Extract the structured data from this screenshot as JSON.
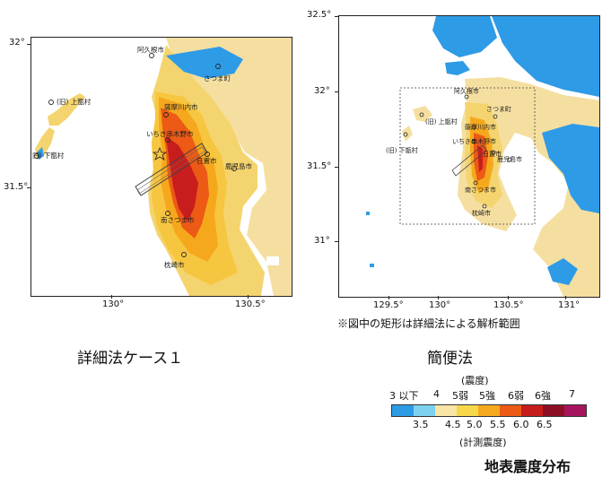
{
  "maps": [
    {
      "caption": "詳細法ケース１",
      "lat_ticks": [
        "32°",
        "31.5°"
      ],
      "lon_ticks": [
        "130°",
        "130.5°"
      ],
      "places": [
        "阿久根市",
        "さつま町",
        "(旧) 上甑村",
        "薩摩川内市",
        "いちき串木野市",
        "(旧) 下甑村",
        "日置市",
        "鹿児島市",
        "南さつま市",
        "枕崎市"
      ]
    },
    {
      "caption": "簡便法",
      "lat_ticks": [
        "32.5°",
        "32°",
        "31.5°",
        "31°"
      ],
      "lon_ticks": [
        "129.5°",
        "130°",
        "130.5°",
        "131°"
      ],
      "places": [
        "阿久根市",
        "さつま町",
        "(旧) 上甑村",
        "薩摩川内市",
        "いちき串木野市",
        "(旧) 下甑村",
        "日置市",
        "鹿児島市",
        "南さつま市",
        "枕崎市"
      ],
      "note": "※図中の矩形は詳細法による解析範囲"
    }
  ],
  "legend": {
    "title_top": "(震度)",
    "intensity_labels": [
      "3 以下",
      "4",
      "5弱",
      "5強",
      "6弱",
      "6強",
      "7"
    ],
    "colors": [
      "#2e9be6",
      "#7ed1ef",
      "#f7e6a5",
      "#f7d84a",
      "#f6a81d",
      "#ec5a16",
      "#c81d1d",
      "#8d0f26",
      "#a7145e"
    ],
    "scale_values": [
      "3.5",
      "4.5",
      "5.0",
      "5.5",
      "6.0",
      "6.5"
    ],
    "title_bottom": "(計測震度)"
  },
  "figure_title": "地表震度分布"
}
